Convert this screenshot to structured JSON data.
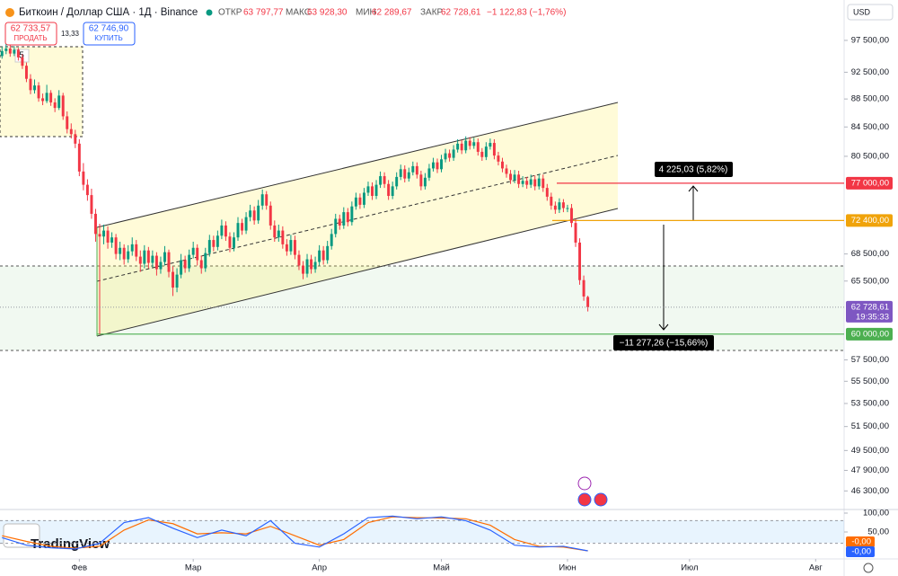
{
  "header": {
    "title": "Биткоин / Доллар США · 1Д · Binance",
    "open_label": "ОТКР",
    "open": "63 797,77",
    "high_label": "МАКС",
    "high": "63 928,30",
    "low_label": "МИН",
    "low": "62 289,67",
    "close_label": "ЗАКР",
    "close": "62 728,61",
    "change": "−1 122,83 (−1,76%)",
    "sell_price": "62 733,57",
    "sell_label": "ПРОДАТЬ",
    "spread": "13,33",
    "buy_price": "62 746,90",
    "buy_label": "КУПИТЬ",
    "currency": "USD",
    "drawing_count": "5",
    "logo": "TradingView"
  },
  "chart_data": {
    "type": "candlestick",
    "log_scale": true,
    "grid": false,
    "up_color": "#089981",
    "down_color": "#f23645",
    "xlim": [
      -19.5,
      188
    ],
    "xticks": [
      {
        "value": 0,
        "label": "Фев"
      },
      {
        "value": 28,
        "label": "Мар"
      },
      {
        "value": 59,
        "label": "Апр"
      },
      {
        "value": 89,
        "label": "Май"
      },
      {
        "value": 120,
        "label": "Июн"
      },
      {
        "value": 150,
        "label": "Июл"
      },
      {
        "value": 181,
        "label": "Авг"
      }
    ],
    "ylim": [
      44900,
      103000
    ],
    "yticks": [
      {
        "value": 97500,
        "label": "97 500,00"
      },
      {
        "value": 92500,
        "label": "92 500,00"
      },
      {
        "value": 88500,
        "label": "88 500,00"
      },
      {
        "value": 84500,
        "label": "84 500,00"
      },
      {
        "value": 80500,
        "label": "80 500,00"
      },
      {
        "value": 68500,
        "label": "68 500,00"
      },
      {
        "value": 65500,
        "label": "65 500,00"
      },
      {
        "value": 57500,
        "label": "57 500,00"
      },
      {
        "value": 55500,
        "label": "55 500,00"
      },
      {
        "value": 53500,
        "label": "53 500,00"
      },
      {
        "value": 51500,
        "label": "51 500,00"
      },
      {
        "value": 49500,
        "label": "49 500,00"
      },
      {
        "value": 47900,
        "label": "47 900,00"
      },
      {
        "value": 46300,
        "label": "46 300,00"
      }
    ],
    "levels": [
      {
        "value": 77000,
        "label": "77 000,00",
        "color": "#f23645"
      },
      {
        "value": 72400,
        "label": "72 400,00",
        "color": "#f0a30a"
      },
      {
        "value": 60000,
        "label": "60 000,00",
        "color": "#4caf50"
      }
    ],
    "last_label": "62 728,61",
    "countdown": "19:35:33",
    "annotations": [
      "4 225,03 (5,82%)",
      "−11 277,26 (−15,66%)"
    ],
    "x": [
      -19,
      -18,
      -17,
      -16,
      -15,
      -14,
      -13,
      -12,
      -11,
      -10,
      -9,
      -8,
      -7,
      -6,
      -5,
      -4,
      -3,
      -2,
      -1,
      0,
      1,
      2,
      3,
      4,
      5,
      6,
      7,
      8,
      9,
      10,
      11,
      12,
      13,
      14,
      15,
      16,
      17,
      18,
      19,
      20,
      21,
      22,
      23,
      24,
      25,
      26,
      27,
      28,
      29,
      30,
      31,
      32,
      33,
      34,
      35,
      36,
      37,
      38,
      39,
      40,
      41,
      42,
      43,
      44,
      45,
      46,
      47,
      48,
      49,
      50,
      51,
      52,
      53,
      54,
      55,
      56,
      57,
      58,
      59,
      60,
      61,
      62,
      63,
      64,
      65,
      66,
      67,
      68,
      69,
      70,
      71,
      72,
      73,
      74,
      75,
      76,
      77,
      78,
      79,
      80,
      81,
      82,
      83,
      84,
      85,
      86,
      87,
      88,
      89,
      90,
      91,
      92,
      93,
      94,
      95,
      96,
      97,
      98,
      99,
      100,
      101,
      102,
      103,
      104,
      105,
      106,
      107,
      108,
      109,
      110,
      111,
      112,
      113,
      114,
      115,
      116,
      117,
      118,
      119,
      120,
      121,
      122,
      123,
      124,
      125
    ],
    "ohlc": [
      [
        95000,
        96500,
        94600,
        95800
      ],
      [
        95800,
        96900,
        95300,
        96200
      ],
      [
        96200,
        96700,
        94900,
        95400
      ],
      [
        95400,
        96600,
        95000,
        96000
      ],
      [
        96000,
        96300,
        94300,
        94800
      ],
      [
        94800,
        95300,
        93000,
        93500
      ],
      [
        93500,
        94000,
        91000,
        91500
      ],
      [
        91500,
        92200,
        89200,
        89800
      ],
      [
        89800,
        91400,
        89300,
        90500
      ],
      [
        90500,
        91000,
        88100,
        88600
      ],
      [
        88600,
        89300,
        87600,
        88200
      ],
      [
        88200,
        90600,
        87900,
        89400
      ],
      [
        89400,
        89800,
        87500,
        88000
      ],
      [
        88000,
        88600,
        86600,
        87200
      ],
      [
        87200,
        89800,
        86900,
        89000
      ],
      [
        89000,
        89400,
        85500,
        86000
      ],
      [
        86000,
        86700,
        83600,
        84200
      ],
      [
        84200,
        85000,
        82900,
        83500
      ],
      [
        83500,
        84100,
        81600,
        82200
      ],
      [
        82200,
        82800,
        77900,
        78500
      ],
      [
        78500,
        79600,
        76100,
        76800
      ],
      [
        76800,
        77500,
        74800,
        75500
      ],
      [
        75500,
        76300,
        72600,
        73200
      ],
      [
        73200,
        73800,
        69900,
        70800
      ],
      [
        70800,
        72000,
        60000,
        70500
      ],
      [
        70500,
        71900,
        69600,
        71200
      ],
      [
        71200,
        71700,
        69100,
        69800
      ],
      [
        69800,
        71000,
        69200,
        70400
      ],
      [
        70400,
        70800,
        67900,
        68500
      ],
      [
        68500,
        69900,
        67800,
        69200
      ],
      [
        69200,
        69600,
        67300,
        67900
      ],
      [
        67900,
        69500,
        67500,
        68800
      ],
      [
        68800,
        70400,
        68300,
        69600
      ],
      [
        69600,
        70100,
        67700,
        68200
      ],
      [
        68200,
        68900,
        66500,
        67400
      ],
      [
        67400,
        69500,
        66900,
        68900
      ],
      [
        68900,
        69300,
        66900,
        67500
      ],
      [
        67500,
        68900,
        67000,
        68300
      ],
      [
        68300,
        68700,
        66100,
        66800
      ],
      [
        66800,
        68200,
        66300,
        67600
      ],
      [
        67600,
        69400,
        67200,
        68700
      ],
      [
        68700,
        69000,
        65900,
        66500
      ],
      [
        66500,
        67100,
        63900,
        64800
      ],
      [
        64800,
        66900,
        64300,
        66200
      ],
      [
        66200,
        68500,
        65800,
        67800
      ],
      [
        67800,
        68300,
        66400,
        66900
      ],
      [
        66900,
        69000,
        66500,
        68400
      ],
      [
        68400,
        69900,
        68000,
        69200
      ],
      [
        69200,
        69600,
        67200,
        67800
      ],
      [
        67800,
        68300,
        66300,
        66900
      ],
      [
        66900,
        69200,
        66500,
        68600
      ],
      [
        68600,
        70700,
        68200,
        70100
      ],
      [
        70100,
        70600,
        68800,
        69300
      ],
      [
        69300,
        71200,
        68900,
        70600
      ],
      [
        70600,
        72500,
        70200,
        71800
      ],
      [
        71800,
        72300,
        70000,
        70500
      ],
      [
        70500,
        71000,
        68700,
        69200
      ],
      [
        69200,
        71000,
        68800,
        70400
      ],
      [
        70400,
        72800,
        70000,
        72100
      ],
      [
        72100,
        72600,
        70700,
        71200
      ],
      [
        71200,
        73400,
        70800,
        72800
      ],
      [
        72800,
        74300,
        72300,
        73600
      ],
      [
        73600,
        74100,
        71900,
        72400
      ],
      [
        72400,
        74900,
        72000,
        74200
      ],
      [
        74200,
        76200,
        73700,
        75600
      ],
      [
        75600,
        76000,
        73700,
        74200
      ],
      [
        74200,
        74700,
        71300,
        71800
      ],
      [
        71800,
        72400,
        69900,
        70400
      ],
      [
        70400,
        71900,
        69900,
        71200
      ],
      [
        71200,
        71700,
        69100,
        69600
      ],
      [
        69600,
        70200,
        68300,
        68800
      ],
      [
        68800,
        70700,
        68400,
        70100
      ],
      [
        70100,
        70600,
        67900,
        68400
      ],
      [
        68400,
        68900,
        66700,
        67200
      ],
      [
        67200,
        67700,
        65700,
        66300
      ],
      [
        66300,
        68500,
        65900,
        67900
      ],
      [
        67900,
        68400,
        66300,
        66800
      ],
      [
        66800,
        68200,
        66400,
        67600
      ],
      [
        67600,
        69500,
        67200,
        68900
      ],
      [
        68900,
        69400,
        67300,
        67800
      ],
      [
        67800,
        70000,
        67400,
        69400
      ],
      [
        69400,
        71400,
        69000,
        70800
      ],
      [
        70800,
        73200,
        70400,
        72600
      ],
      [
        72600,
        73100,
        71300,
        71800
      ],
      [
        71800,
        74000,
        71400,
        73400
      ],
      [
        73400,
        73900,
        71700,
        72200
      ],
      [
        72200,
        74700,
        71800,
        74100
      ],
      [
        74100,
        75800,
        73700,
        75200
      ],
      [
        75200,
        75700,
        73800,
        74300
      ],
      [
        74300,
        76400,
        73900,
        75800
      ],
      [
        75800,
        77200,
        75400,
        76600
      ],
      [
        76600,
        77100,
        74900,
        75400
      ],
      [
        75400,
        77400,
        75000,
        76800
      ],
      [
        76800,
        78500,
        76400,
        77900
      ],
      [
        77900,
        78400,
        76400,
        76900
      ],
      [
        76900,
        77400,
        74900,
        75400
      ],
      [
        75400,
        77200,
        75000,
        76600
      ],
      [
        76600,
        78400,
        76200,
        77800
      ],
      [
        77800,
        79400,
        77400,
        78800
      ],
      [
        78800,
        79300,
        77100,
        77600
      ],
      [
        77600,
        79000,
        77200,
        78400
      ],
      [
        78400,
        79800,
        78000,
        79200
      ],
      [
        79200,
        79700,
        77600,
        78100
      ],
      [
        78100,
        78600,
        76100,
        76600
      ],
      [
        76600,
        78300,
        76200,
        77700
      ],
      [
        77700,
        79500,
        77300,
        78900
      ],
      [
        78900,
        80300,
        78500,
        79700
      ],
      [
        79700,
        80200,
        78300,
        78800
      ],
      [
        78800,
        80700,
        78400,
        80100
      ],
      [
        80100,
        81500,
        79700,
        80900
      ],
      [
        80900,
        81400,
        79800,
        80300
      ],
      [
        80300,
        82000,
        79900,
        81400
      ],
      [
        81400,
        82800,
        81000,
        82200
      ],
      [
        82200,
        82700,
        80800,
        81300
      ],
      [
        81300,
        83200,
        80900,
        82600
      ],
      [
        82600,
        83100,
        81400,
        81900
      ],
      [
        81900,
        83000,
        81500,
        82400
      ],
      [
        82400,
        82900,
        80600,
        81100
      ],
      [
        81100,
        81600,
        79900,
        80400
      ],
      [
        80400,
        82400,
        80000,
        81800
      ],
      [
        81800,
        82900,
        81400,
        82300
      ],
      [
        82300,
        82800,
        80100,
        80600
      ],
      [
        80600,
        81100,
        79300,
        79800
      ],
      [
        79800,
        80300,
        78400,
        78900
      ],
      [
        78900,
        79400,
        77700,
        78200
      ],
      [
        78200,
        78700,
        76900,
        77400
      ],
      [
        77400,
        78700,
        77000,
        78100
      ],
      [
        78100,
        78600,
        76400,
        76900
      ],
      [
        76900,
        77900,
        76500,
        77300
      ],
      [
        77300,
        77800,
        76300,
        76800
      ],
      [
        76800,
        78100,
        76400,
        77500
      ],
      [
        77500,
        78000,
        76100,
        76600
      ],
      [
        76600,
        78200,
        76200,
        77600
      ],
      [
        77600,
        78100,
        75900,
        76400
      ],
      [
        76400,
        76900,
        74800,
        75300
      ],
      [
        75300,
        75800,
        73700,
        74200
      ],
      [
        74200,
        74700,
        73200,
        73700
      ],
      [
        73700,
        75100,
        73300,
        74600
      ],
      [
        74600,
        75000,
        73400,
        73900
      ],
      [
        73900,
        74300,
        73400,
        73900
      ],
      [
        73900,
        74400,
        71600,
        72100
      ],
      [
        72100,
        72600,
        69300,
        69800
      ],
      [
        69800,
        70300,
        65100,
        65600
      ],
      [
        65600,
        66100,
        63400,
        63851.44
      ],
      [
        63797.77,
        63928.3,
        62289.67,
        62728.61
      ]
    ]
  },
  "indicator": {
    "type": "line",
    "ylim": [
      0,
      100
    ],
    "yticks": [
      {
        "value": 100,
        "label": "100,00"
      },
      {
        "value": 50,
        "label": "50,00"
      }
    ],
    "band": [
      20,
      80
    ],
    "x": [
      -19,
      -13,
      -7,
      -1,
      5,
      11,
      17,
      23,
      29,
      35,
      41,
      47,
      53,
      59,
      65,
      71,
      77,
      83,
      89,
      95,
      101,
      107,
      113,
      119,
      125
    ],
    "series": [
      {
        "color": "#ff6d00",
        "last_label": "-0,00",
        "values": [
          40,
          25,
          12,
          7,
          12,
          55,
          82,
          72,
          45,
          48,
          45,
          65,
          40,
          15,
          30,
          75,
          90,
          88,
          87,
          85,
          68,
          30,
          12,
          10,
          0
        ]
      },
      {
        "color": "#2962ff",
        "last_label": "-0,00",
        "values": [
          35,
          15,
          8,
          5,
          20,
          75,
          88,
          60,
          35,
          55,
          40,
          80,
          20,
          10,
          45,
          88,
          92,
          85,
          90,
          80,
          55,
          15,
          10,
          12,
          0
        ]
      }
    ]
  }
}
